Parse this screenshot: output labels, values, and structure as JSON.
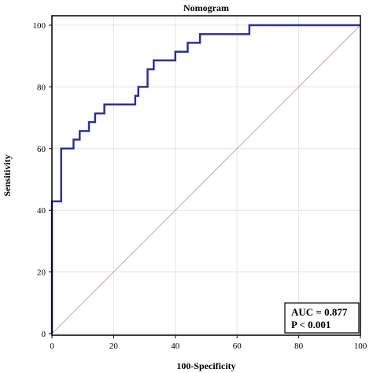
{
  "chart_data": {
    "type": "line",
    "title": "Nomogram",
    "xlabel": "100-Specificity",
    "ylabel": "Sensitivity",
    "xlim": [
      0,
      100
    ],
    "ylim": [
      0,
      100
    ],
    "xticks": [
      0,
      20,
      40,
      60,
      80,
      100
    ],
    "yticks": [
      0,
      20,
      40,
      60,
      80,
      100
    ],
    "grid": true,
    "series": [
      {
        "color": "#2e3192",
        "x": [
          0,
          0,
          0,
          0,
          3,
          3,
          3,
          3,
          7,
          7,
          9,
          9,
          12,
          12,
          14,
          14,
          17,
          17,
          27,
          27,
          28,
          28,
          31,
          31,
          33,
          33,
          40,
          40,
          44,
          44,
          48,
          48,
          64,
          64,
          100
        ],
        "y": [
          0,
          40,
          42.9,
          42.9,
          42.9,
          45.7,
          45.7,
          60,
          60,
          62.9,
          62.9,
          65.7,
          65.7,
          68.6,
          68.6,
          71.4,
          71.4,
          74.3,
          74.3,
          77.1,
          77.1,
          80,
          80,
          85.7,
          85.7,
          88.6,
          88.6,
          91.4,
          91.4,
          94.3,
          94.3,
          97.1,
          97.1,
          100,
          100
        ]
      }
    ],
    "reference_line": {
      "x": [
        0,
        100
      ],
      "y": [
        0,
        100
      ],
      "color": "#c9a9a9"
    },
    "annotation": {
      "auc": "AUC = 0.877",
      "p": "P < 0.001"
    }
  }
}
